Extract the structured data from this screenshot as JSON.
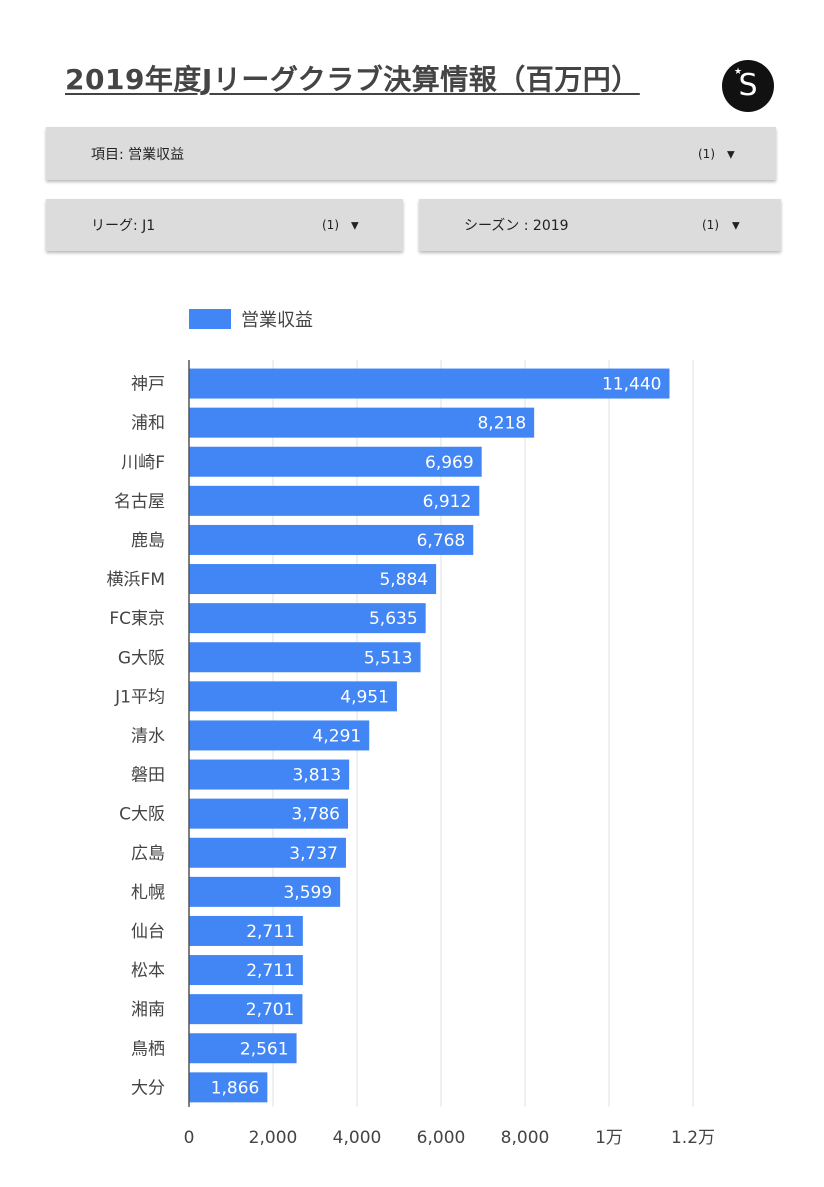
{
  "title": "2019年度Jリーグクラブ決算情報（百万円）",
  "logo": {
    "letter": "S",
    "icon": "s-logo-icon"
  },
  "filters": {
    "item": {
      "label": "項目: 営業収益",
      "count": "(1)",
      "icon": "dropdown-arrow-icon"
    },
    "league": {
      "label": "リーグ: J1",
      "count": "(1)",
      "icon": "dropdown-arrow-icon"
    },
    "season": {
      "label": "シーズン : 2019",
      "count": "(1)",
      "icon": "dropdown-arrow-icon"
    }
  },
  "colors": {
    "bar": "#4285f4",
    "grid": "#e0e0e0",
    "axis": "#555555",
    "label": "#444444"
  },
  "chart_data": {
    "type": "bar",
    "orientation": "horizontal",
    "series": [
      {
        "name": "営業収益"
      }
    ],
    "categories": [
      "神戸",
      "浦和",
      "川崎F",
      "名古屋",
      "鹿島",
      "横浜FM",
      "FC東京",
      "G大阪",
      "J1平均",
      "清水",
      "磐田",
      "C大阪",
      "広島",
      "札幌",
      "仙台",
      "松本",
      "湘南",
      "鳥栖",
      "大分"
    ],
    "values": [
      11440,
      8218,
      6969,
      6912,
      6768,
      5884,
      5635,
      5513,
      4951,
      4291,
      3813,
      3786,
      3737,
      3599,
      2711,
      2711,
      2701,
      2561,
      1866
    ],
    "data_labels": [
      "11,440",
      "8,218",
      "6,969",
      "6,912",
      "6,768",
      "5,884",
      "5,635",
      "5,513",
      "4,951",
      "4,291",
      "3,813",
      "3,786",
      "3,737",
      "3,599",
      "2,711",
      "2,711",
      "2,701",
      "2,561",
      "1,866"
    ],
    "xlim": [
      0,
      12000
    ],
    "x_ticks": [
      0,
      2000,
      4000,
      6000,
      8000,
      10000,
      12000
    ],
    "x_tick_labels": [
      "0",
      "2,000",
      "4,000",
      "6,000",
      "8,000",
      "1万",
      "1.2万"
    ],
    "grid": true,
    "legend": "top-left"
  }
}
